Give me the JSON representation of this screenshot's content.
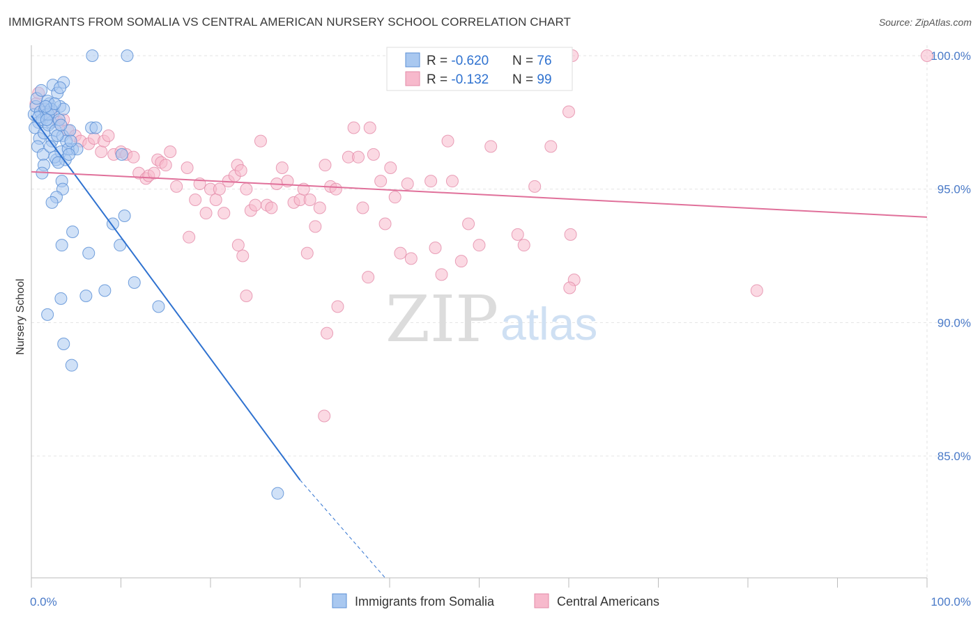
{
  "title": "IMMIGRANTS FROM SOMALIA VS CENTRAL AMERICAN NURSERY SCHOOL CORRELATION CHART",
  "source": "Source: ZipAtlas.com",
  "watermark": {
    "zip": "ZIP",
    "atlas": "atlas"
  },
  "colors": {
    "blue_fill": "#a9c8f0",
    "blue_stroke": "#5b8fd6",
    "blue_line": "#2f72d0",
    "pink_fill": "#f7b9cc",
    "pink_stroke": "#e38aa7",
    "pink_line": "#e0709a",
    "tick_text": "#4a7ac8",
    "grid": "#e3e3e3"
  },
  "legend": {
    "rows": [
      {
        "r_label": "R = ",
        "r_value": "-0.620",
        "n_label": "N = ",
        "n_value": "76"
      },
      {
        "r_label": "R = ",
        "r_value": "-0.132",
        "n_label": "N = ",
        "n_value": "99"
      }
    ]
  },
  "bottom_legend": {
    "items": [
      "Immigrants from Somalia",
      "Central Americans"
    ]
  },
  "chart_data": {
    "type": "scatter",
    "title": "IMMIGRANTS FROM SOMALIA VS CENTRAL AMERICAN NURSERY SCHOOL CORRELATION CHART",
    "xlabel": "",
    "ylabel": "Nursery School",
    "xlim": [
      0,
      100
    ],
    "ylim": [
      80.5,
      100.8
    ],
    "x_tick_labels": [
      "0.0%",
      "100.0%"
    ],
    "y_ticks": [
      85,
      90,
      95,
      100
    ],
    "y_tick_labels": [
      "85.0%",
      "90.0%",
      "95.0%",
      "100.0%"
    ],
    "grid": true,
    "legend_position": "top-center",
    "series": [
      {
        "name": "Immigrants from Somalia",
        "color": "#a9c8f0",
        "R": -0.62,
        "N": 76,
        "trend": {
          "x0": 0,
          "y0": 97.75,
          "x1": 30,
          "y1": 84.1,
          "dashed_to_x": 39.5
        },
        "points": [
          [
            0.3,
            97.8
          ],
          [
            0.5,
            98.1
          ],
          [
            0.8,
            97.5
          ],
          [
            1.0,
            97.9
          ],
          [
            1.2,
            97.6
          ],
          [
            1.5,
            98.0
          ],
          [
            1.7,
            97.8
          ],
          [
            2.0,
            98.2
          ],
          [
            2.2,
            97.5
          ],
          [
            2.5,
            97.9
          ],
          [
            0.6,
            98.4
          ],
          [
            1.1,
            98.7
          ],
          [
            1.8,
            98.3
          ],
          [
            2.4,
            98.9
          ],
          [
            2.9,
            98.6
          ],
          [
            3.2,
            98.1
          ],
          [
            3.6,
            98.0
          ],
          [
            0.4,
            97.3
          ],
          [
            0.9,
            96.9
          ],
          [
            1.4,
            97.1
          ],
          [
            1.9,
            97.4
          ],
          [
            2.3,
            96.8
          ],
          [
            2.7,
            97.2
          ],
          [
            3.1,
            97.6
          ],
          [
            3.5,
            97.0
          ],
          [
            3.9,
            96.8
          ],
          [
            4.3,
            97.2
          ],
          [
            4.6,
            96.5
          ],
          [
            0.7,
            96.6
          ],
          [
            1.3,
            96.3
          ],
          [
            2.1,
            96.6
          ],
          [
            2.8,
            96.1
          ],
          [
            3.3,
            96.4
          ],
          [
            3.8,
            96.1
          ],
          [
            4.1,
            96.5
          ],
          [
            1.4,
            95.9
          ],
          [
            2.6,
            96.2
          ],
          [
            3.0,
            96.0
          ],
          [
            1.2,
            95.6
          ],
          [
            3.4,
            95.3
          ],
          [
            3.5,
            95.0
          ],
          [
            2.8,
            94.7
          ],
          [
            2.3,
            94.5
          ],
          [
            4.6,
            93.4
          ],
          [
            3.4,
            92.9
          ],
          [
            6.4,
            92.6
          ],
          [
            9.1,
            93.7
          ],
          [
            10.4,
            94.0
          ],
          [
            9.9,
            92.9
          ],
          [
            11.5,
            91.5
          ],
          [
            8.2,
            91.2
          ],
          [
            6.1,
            91.0
          ],
          [
            3.3,
            90.9
          ],
          [
            1.8,
            90.3
          ],
          [
            3.6,
            89.2
          ],
          [
            4.5,
            88.4
          ],
          [
            14.2,
            90.6
          ],
          [
            27.5,
            83.6
          ],
          [
            6.7,
            97.3
          ],
          [
            7.2,
            97.3
          ],
          [
            10.1,
            96.3
          ],
          [
            5.1,
            96.5
          ],
          [
            4.2,
            96.3
          ],
          [
            1.9,
            97.8
          ],
          [
            2.2,
            98.0
          ],
          [
            3.6,
            99.0
          ],
          [
            3.2,
            98.8
          ],
          [
            2.6,
            98.2
          ],
          [
            1.6,
            98.1
          ],
          [
            0.8,
            97.7
          ],
          [
            1.7,
            97.6
          ],
          [
            2.9,
            97.0
          ],
          [
            6.8,
            100.0
          ],
          [
            10.7,
            100.0
          ],
          [
            4.4,
            96.8
          ],
          [
            3.3,
            97.4
          ]
        ]
      },
      {
        "name": "Central Americans",
        "color": "#f7b9cc",
        "R": -0.132,
        "N": 99,
        "trend": {
          "x0": 0,
          "y0": 95.65,
          "x1": 100,
          "y1": 93.95
        },
        "points": [
          [
            0.8,
            98.6
          ],
          [
            0.5,
            98.2
          ],
          [
            1.5,
            98.0
          ],
          [
            2.2,
            97.8
          ],
          [
            3.0,
            97.5
          ],
          [
            3.6,
            97.6
          ],
          [
            4.1,
            97.2
          ],
          [
            4.9,
            97.0
          ],
          [
            5.5,
            96.8
          ],
          [
            6.4,
            96.7
          ],
          [
            7.0,
            96.9
          ],
          [
            7.8,
            96.4
          ],
          [
            8.1,
            96.8
          ],
          [
            8.6,
            97.0
          ],
          [
            9.2,
            96.3
          ],
          [
            10.0,
            96.4
          ],
          [
            10.6,
            96.3
          ],
          [
            11.4,
            96.2
          ],
          [
            12.0,
            95.6
          ],
          [
            12.8,
            95.4
          ],
          [
            13.1,
            95.5
          ],
          [
            13.7,
            95.6
          ],
          [
            14.1,
            96.1
          ],
          [
            14.5,
            96.0
          ],
          [
            15.0,
            95.9
          ],
          [
            15.5,
            96.4
          ],
          [
            16.2,
            95.1
          ],
          [
            17.4,
            95.8
          ],
          [
            18.3,
            94.6
          ],
          [
            18.8,
            95.2
          ],
          [
            19.5,
            94.1
          ],
          [
            20.0,
            95.0
          ],
          [
            20.6,
            94.6
          ],
          [
            21.0,
            95.0
          ],
          [
            21.5,
            94.1
          ],
          [
            22.0,
            95.3
          ],
          [
            22.7,
            95.5
          ],
          [
            23.0,
            95.9
          ],
          [
            23.4,
            95.7
          ],
          [
            24.0,
            95.0
          ],
          [
            24.5,
            94.2
          ],
          [
            25.0,
            94.4
          ],
          [
            25.6,
            96.8
          ],
          [
            26.3,
            94.4
          ],
          [
            26.8,
            94.3
          ],
          [
            27.4,
            95.2
          ],
          [
            28.0,
            95.8
          ],
          [
            28.6,
            95.3
          ],
          [
            29.3,
            94.5
          ],
          [
            30.0,
            94.6
          ],
          [
            30.4,
            95.0
          ],
          [
            31.1,
            94.6
          ],
          [
            31.7,
            93.6
          ],
          [
            32.2,
            94.3
          ],
          [
            32.8,
            95.9
          ],
          [
            33.4,
            95.1
          ],
          [
            34.0,
            95.0
          ],
          [
            35.4,
            96.2
          ],
          [
            36.0,
            97.3
          ],
          [
            36.5,
            96.2
          ],
          [
            37.0,
            94.3
          ],
          [
            37.8,
            97.3
          ],
          [
            38.2,
            96.3
          ],
          [
            39.0,
            95.3
          ],
          [
            39.5,
            93.7
          ],
          [
            40.1,
            95.8
          ],
          [
            40.6,
            94.7
          ],
          [
            41.2,
            92.6
          ],
          [
            42.0,
            95.2
          ],
          [
            42.4,
            92.4
          ],
          [
            44.6,
            95.3
          ],
          [
            45.1,
            92.8
          ],
          [
            45.8,
            91.8
          ],
          [
            46.5,
            96.8
          ],
          [
            47.0,
            95.3
          ],
          [
            48.0,
            92.3
          ],
          [
            48.8,
            93.7
          ],
          [
            50.0,
            92.9
          ],
          [
            51.3,
            96.6
          ],
          [
            54.3,
            93.3
          ],
          [
            55.0,
            92.9
          ],
          [
            56.2,
            95.1
          ],
          [
            58.0,
            96.6
          ],
          [
            60.0,
            97.9
          ],
          [
            60.4,
            100.0
          ],
          [
            60.2,
            93.3
          ],
          [
            60.6,
            91.6
          ],
          [
            60.1,
            91.3
          ],
          [
            37.6,
            91.7
          ],
          [
            34.2,
            90.6
          ],
          [
            33.0,
            89.6
          ],
          [
            32.7,
            86.5
          ],
          [
            24.0,
            91.0
          ],
          [
            23.6,
            92.5
          ],
          [
            23.1,
            92.9
          ],
          [
            17.6,
            93.2
          ],
          [
            30.8,
            92.6
          ],
          [
            81.0,
            91.2
          ],
          [
            100.0,
            100.0
          ]
        ]
      }
    ]
  }
}
